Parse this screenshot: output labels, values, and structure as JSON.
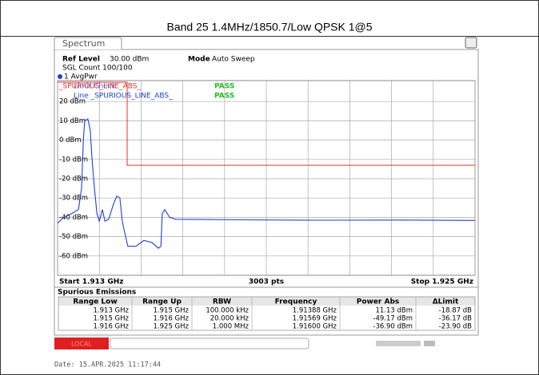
{
  "header": {
    "title": "Band 25 1.4MHz/1850.7/Low QPSK 1@5"
  },
  "panel": {
    "tab": "Spectrum",
    "ref_label": "Ref Level",
    "ref_value": "30.00 dBm",
    "mode_label": "Mode",
    "mode_value": "Auto Sweep",
    "count": "SGL Count 100/100"
  },
  "chart_data": {
    "type": "line",
    "xlim": [
      1.913,
      1.925
    ],
    "ylim": [
      -70,
      30
    ],
    "xticks": [
      1.913,
      1.9142,
      1.9154,
      1.9166,
      1.9178,
      1.919,
      1.9202,
      1.9214,
      1.9226,
      1.9238,
      1.925
    ],
    "yticks": [
      {
        "value": 20,
        "label": "20 dBm"
      },
      {
        "value": 10,
        "label": "10 dBm"
      },
      {
        "value": 0,
        "label": "0 dBm"
      },
      {
        "value": -10,
        "label": "-10 dBm"
      },
      {
        "value": -20,
        "label": "-20 dBm"
      },
      {
        "value": -30,
        "label": "-30 dBm"
      },
      {
        "value": -40,
        "label": "-40 dBm"
      },
      {
        "value": -50,
        "label": "-50 dBm"
      },
      {
        "value": -60,
        "label": "-60 dBm"
      }
    ],
    "grid": true,
    "series": [
      {
        "name": "1 AvgPwr",
        "color": "#1f3fd8",
        "x": [
          1.913,
          1.91318,
          1.91341,
          1.9136,
          1.91369,
          1.91374,
          1.91378,
          1.91387,
          1.91394,
          1.91399,
          1.91406,
          1.91413,
          1.9142,
          1.91429,
          1.91436,
          1.91447,
          1.91461,
          1.9147,
          1.91479,
          1.91486,
          1.91493,
          1.91502,
          1.91525,
          1.91548,
          1.91571,
          1.9159,
          1.91597,
          1.91601,
          1.91608,
          1.91622,
          1.9164,
          1.91824,
          1.92054,
          1.92284,
          1.925
        ],
        "values": [
          -43,
          -40,
          -38,
          -36,
          -25,
          0,
          10,
          11,
          5,
          -10,
          -25,
          -38,
          -42,
          -36,
          -42,
          -41,
          -33,
          -29,
          -30,
          -42,
          -48,
          -55,
          -55,
          -52,
          -53,
          -56,
          -55,
          -38,
          -36,
          -40,
          -41,
          -41.3,
          -41.5,
          -41.4,
          -41.6
        ]
      },
      {
        "name": "_SPURIOUS_LINE_ABS_",
        "color": "#e8302a",
        "x": [
          1.913,
          1.915,
          1.915,
          1.925
        ],
        "values": [
          30,
          30,
          -13,
          -13
        ]
      }
    ],
    "annotations": [
      "Limit Check",
      "Line _SPURIOUS_LINE_ABS_",
      "PASS",
      "PASS"
    ],
    "start": "Start 1.913 GHz",
    "points": "3003 pts",
    "stop": "Stop 1.925 GHz"
  },
  "table": {
    "title": "Spurious Emissions",
    "columns": [
      "Range Low",
      "Range Up",
      "RBW",
      "Frequency",
      "Power Abs",
      "ΔLimit"
    ],
    "rows": [
      [
        "1.913 GHz",
        "1.915 GHz",
        "100.000 kHz",
        "1.91388 GHz",
        "11.13 dBm",
        "-18.87 dB"
      ],
      [
        "1.915 GHz",
        "1.916 GHz",
        "20.000 kHz",
        "1.91569 GHz",
        "-49.17 dBm",
        "-36.17 dB"
      ],
      [
        "1.916 GHz",
        "1.925 GHz",
        "1.000 MHz",
        "1.91600 GHz",
        "-36.90 dBm",
        "-23.90 dB"
      ]
    ]
  },
  "status": {
    "button": "LOCAL"
  },
  "footer": {
    "date": "Date: 15.APR.2025  11:17:44"
  }
}
